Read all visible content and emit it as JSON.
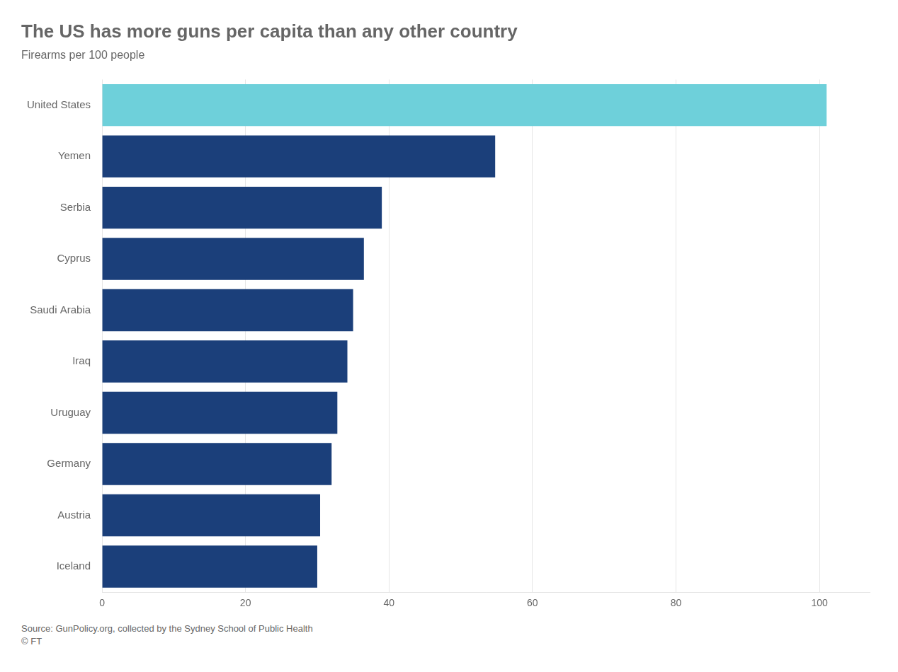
{
  "chart_data": {
    "type": "bar",
    "orientation": "horizontal",
    "title": "The US has more guns per capita than any other country",
    "subtitle": "Firearms per 100 people",
    "source": "Source: GunPolicy.org, collected by the Sydney School of Public Health\n© FT",
    "categories": [
      "Iceland",
      "Austria",
      "Germany",
      "Uruguay",
      "Iraq",
      "Saudi Arabia",
      "Cyprus",
      "Serbia",
      "Yemen",
      "United States"
    ],
    "values": [
      30.0,
      30.4,
      32.0,
      32.8,
      34.2,
      35.0,
      36.5,
      39.0,
      54.8,
      101.0
    ],
    "colors": [
      "#1b3f7a",
      "#1b3f7a",
      "#1b3f7a",
      "#1b3f7a",
      "#1b3f7a",
      "#1b3f7a",
      "#1b3f7a",
      "#1b3f7a",
      "#1b3f7a",
      "#6ed0da"
    ],
    "xlim": [
      0,
      107
    ],
    "xticks": [
      0,
      20,
      40,
      60,
      80,
      100
    ],
    "grid": true
  }
}
